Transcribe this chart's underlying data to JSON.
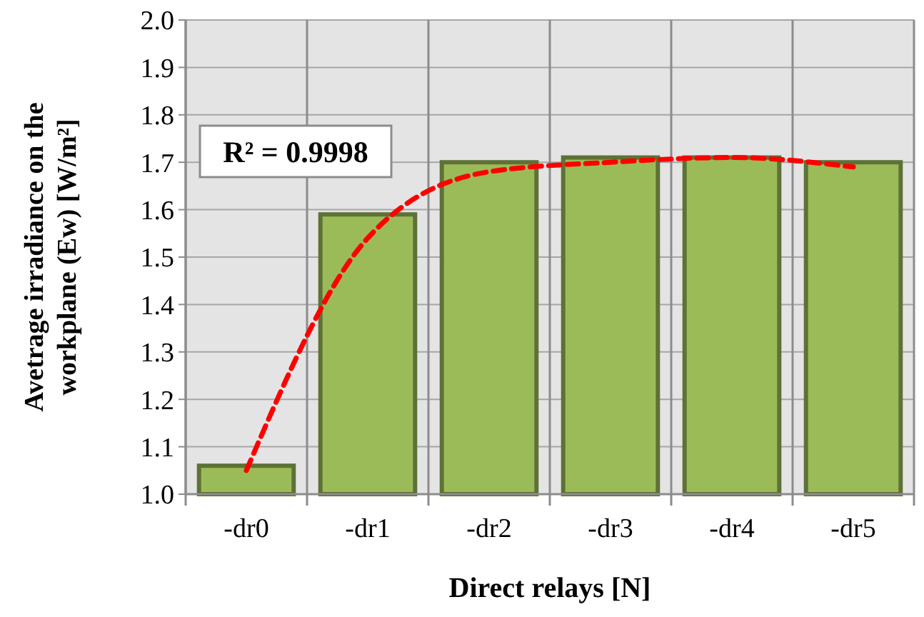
{
  "chart_data": {
    "type": "bar",
    "xlabel": "Direct relays [N]",
    "ylabel": "Avetrage irradiance on the workplane  (Ew) [W/m²]",
    "categories": [
      "-dr0",
      "-dr1",
      "-dr2",
      "-dr3",
      "-dr4",
      "-dr5"
    ],
    "series": [
      {
        "type": "bar",
        "color": "#9bbb59",
        "values": [
          1.06,
          1.59,
          1.7,
          1.71,
          1.71,
          1.7
        ]
      },
      {
        "type": "line",
        "color": "#ff0000",
        "line_style": "dashed",
        "values": [
          1.05,
          1.54,
          1.68,
          1.7,
          1.71,
          1.69
        ]
      }
    ],
    "ylim": [
      1.0,
      2.0
    ],
    "yticks": [
      {
        "value": 1.0,
        "label": "1.0"
      },
      {
        "value": 1.1,
        "label": "1.1"
      },
      {
        "value": 1.2,
        "label": "1.2"
      },
      {
        "value": 1.3,
        "label": "1.3"
      },
      {
        "value": 1.4,
        "label": "1.4"
      },
      {
        "value": 1.5,
        "label": "1.5"
      },
      {
        "value": 1.6,
        "label": "1.6"
      },
      {
        "value": 1.7,
        "label": "1.7"
      },
      {
        "value": 1.8,
        "label": "1.8"
      },
      {
        "value": 1.9,
        "label": "1.9"
      },
      {
        "value": 2.0,
        "label": "2.0"
      }
    ],
    "grid": true,
    "annotations": [
      "R² = 0.9998"
    ]
  }
}
